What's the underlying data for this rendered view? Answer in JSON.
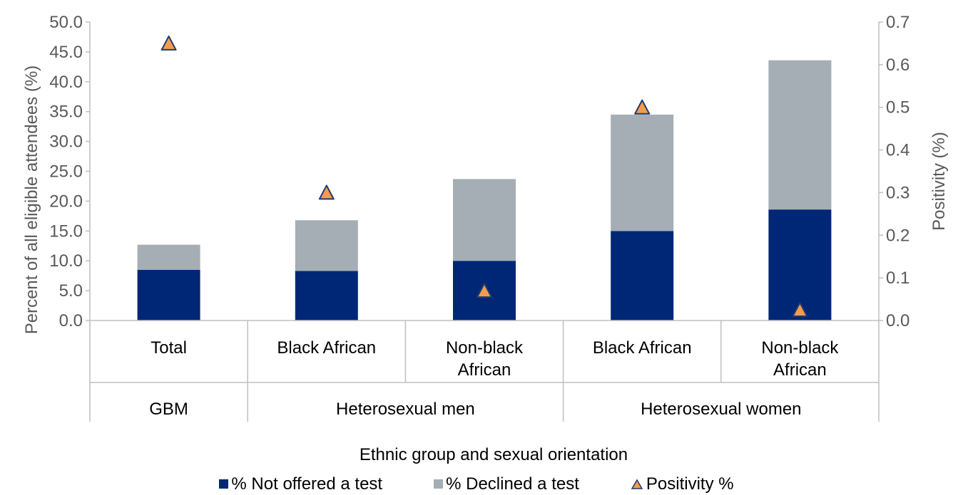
{
  "chart_data": {
    "type": "bar",
    "stacked": true,
    "title": "",
    "categories": [
      {
        "label": "Total",
        "group": "GBM"
      },
      {
        "label": "Black African",
        "group": "Heterosexual men"
      },
      {
        "label": "Non-black African",
        "group": "Heterosexual men"
      },
      {
        "label": "Black African",
        "group": "Heterosexual women"
      },
      {
        "label": "Non-black African",
        "group": "Heterosexual women"
      }
    ],
    "groups": [
      "GBM",
      "Heterosexual men",
      "Heterosexual women"
    ],
    "series": [
      {
        "name": "% Not offered a test",
        "axis": "left",
        "kind": "bar",
        "color": "#002776",
        "values": [
          8.5,
          8.3,
          10.0,
          15.0,
          18.6
        ]
      },
      {
        "name": "% Declined a test",
        "axis": "left",
        "kind": "bar",
        "color": "#A5AEB5",
        "values": [
          4.2,
          8.5,
          13.7,
          19.5,
          25.0
        ]
      },
      {
        "name": "Positivity %",
        "axis": "right",
        "kind": "marker",
        "color": "#F39C4F",
        "edge_color": "#1F3A6E",
        "values": [
          0.65,
          0.3,
          0.07,
          0.5,
          0.025
        ]
      }
    ],
    "xlabel": "Ethnic group and sexual orientation",
    "ylabel": "Percent of all eligible attendees (%)",
    "y2label": "Positivity (%)",
    "ylim": [
      0,
      50
    ],
    "y2lim": [
      0,
      0.7
    ],
    "yticks": [
      "0.0",
      "5.0",
      "10.0",
      "15.0",
      "20.0",
      "25.0",
      "30.0",
      "35.0",
      "40.0",
      "45.0",
      "50.0"
    ],
    "y2ticks": [
      "0.0",
      "0.1",
      "0.2",
      "0.3",
      "0.4",
      "0.5",
      "0.6",
      "0.7"
    ],
    "legend_position": "bottom",
    "grid": false
  }
}
